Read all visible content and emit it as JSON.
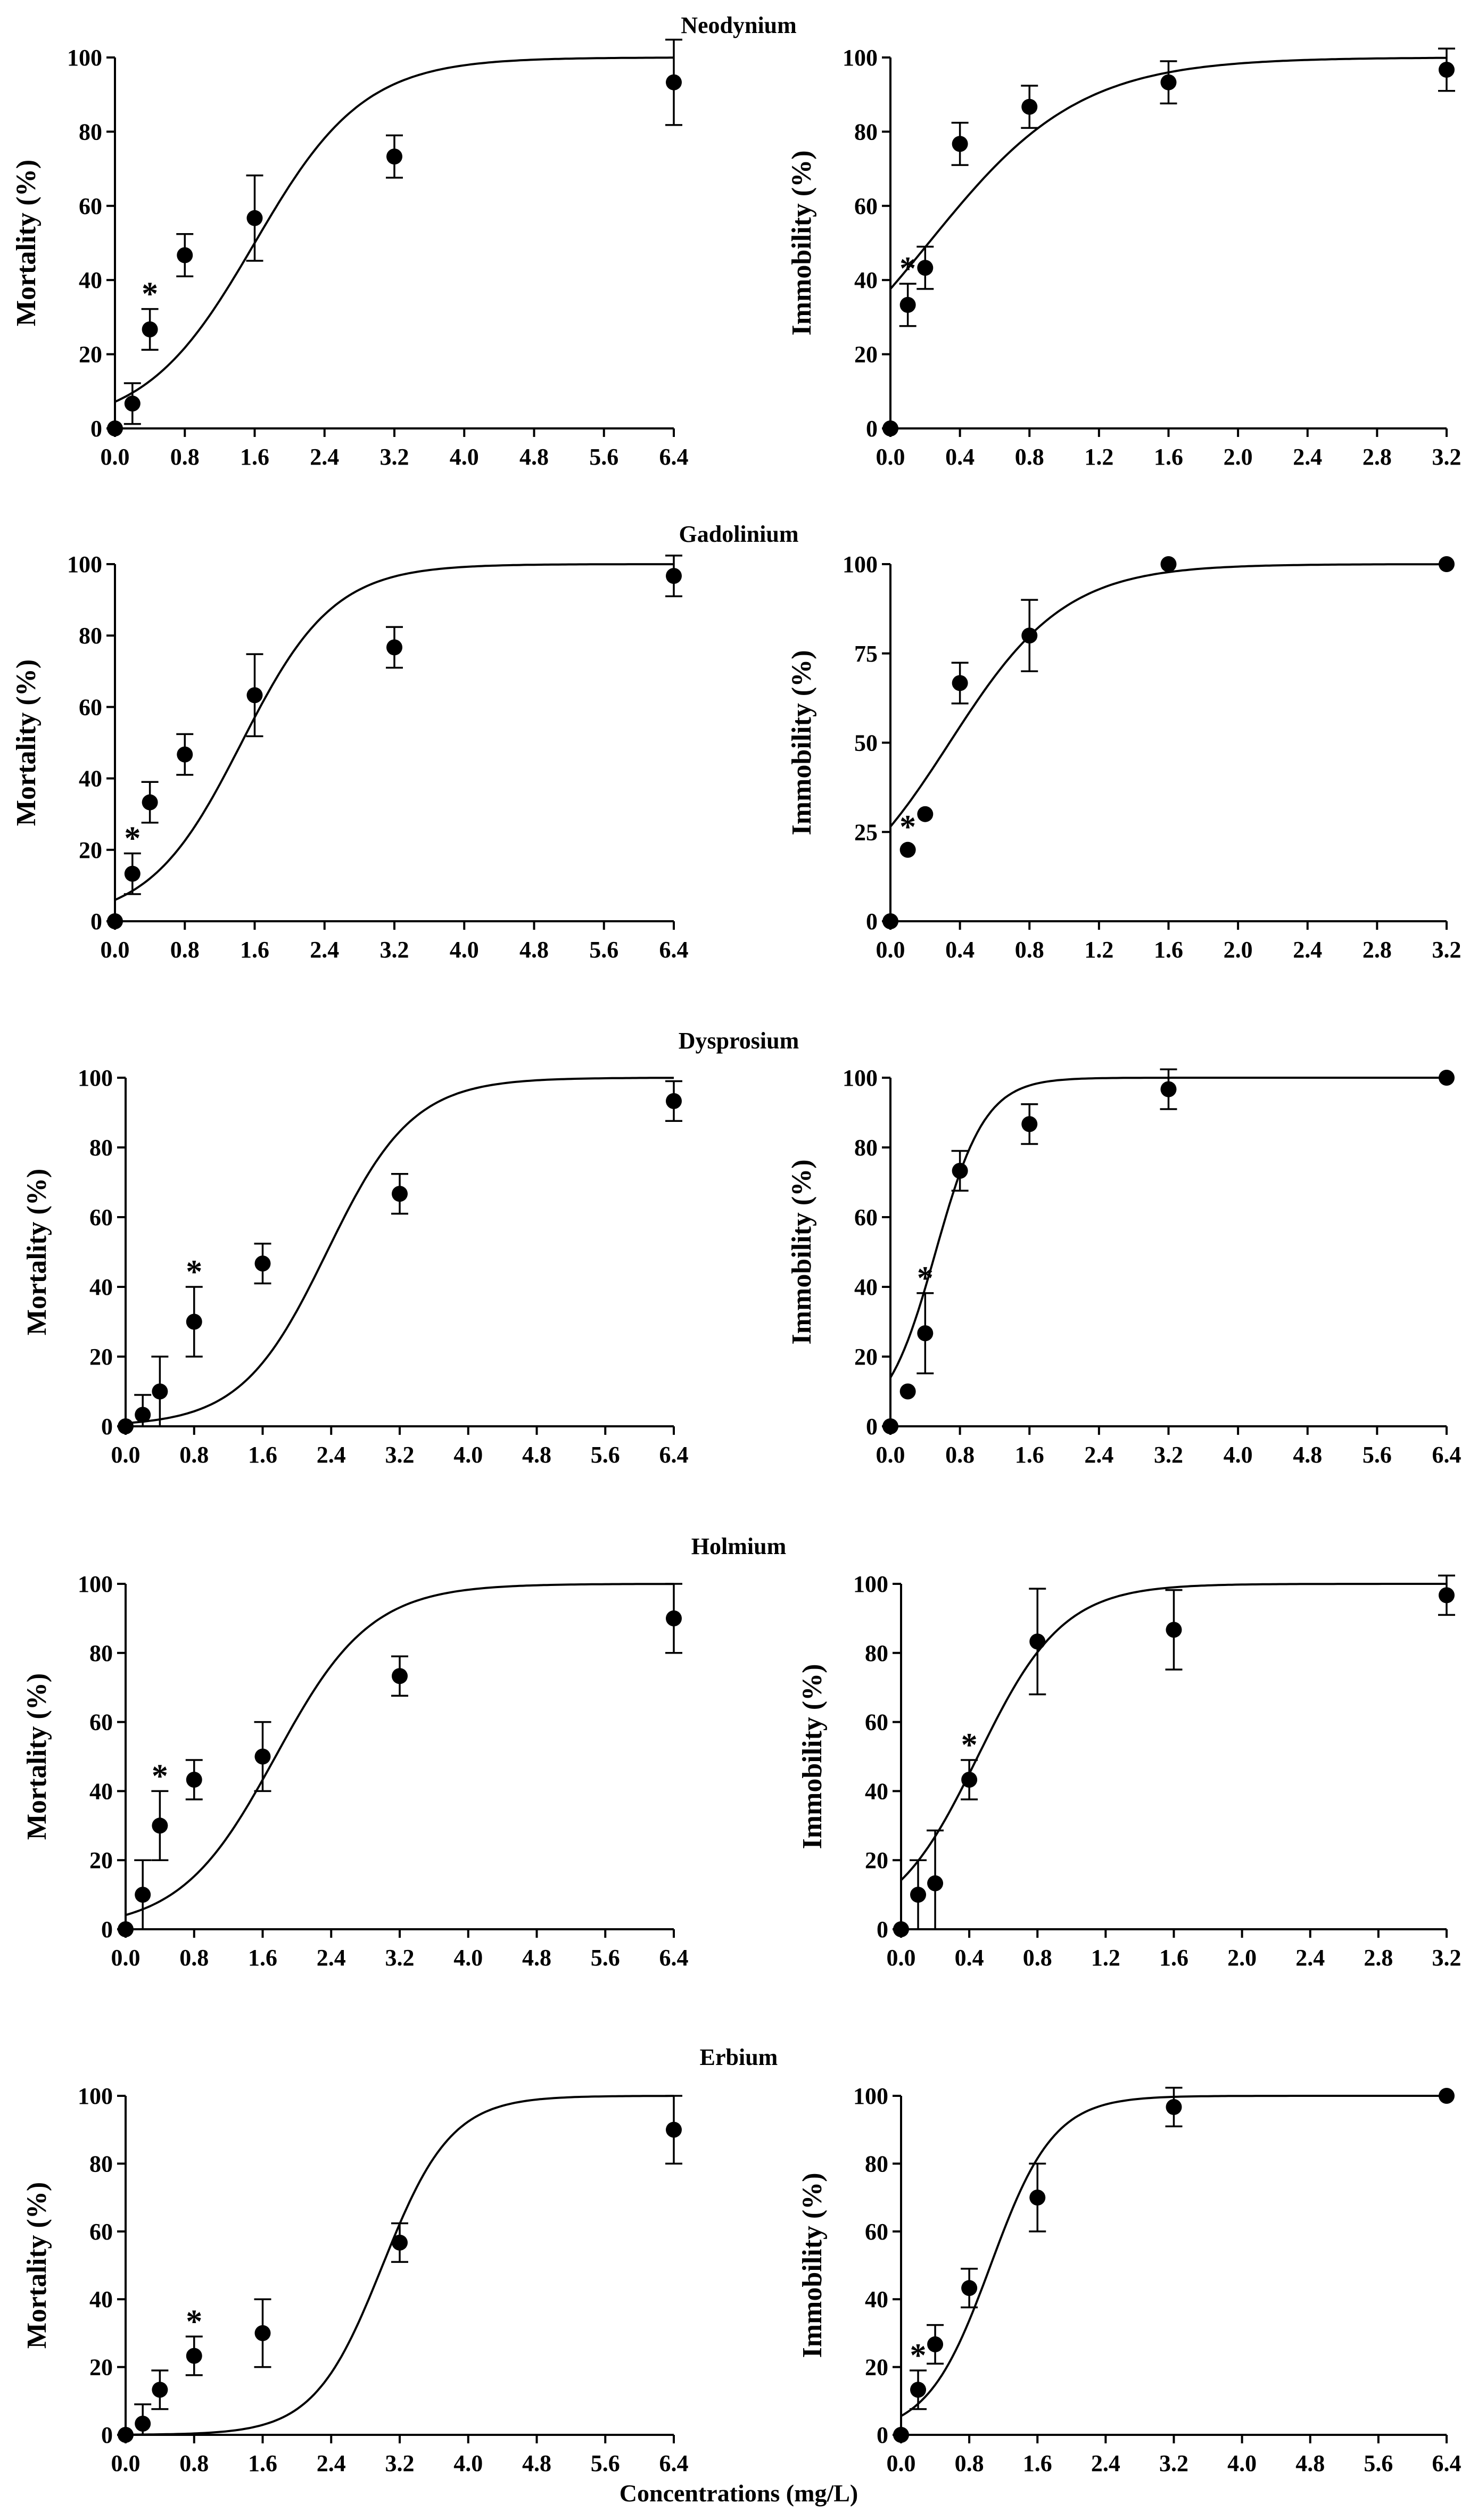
{
  "figure": {
    "xlabel": "Concentrations (mg/L)"
  },
  "chart_data": [
    {
      "id": "nd-mort",
      "type": "scatter",
      "title": "Neodynium",
      "ylabel": "Mortality (%)",
      "xlim": [
        0,
        6.4
      ],
      "xticks": [
        "0.0",
        "0.8",
        "1.6",
        "2.4",
        "3.2",
        "4.0",
        "4.8",
        "5.6",
        "6.4"
      ],
      "ylim": [
        0,
        100
      ],
      "yticks": [
        "0",
        "20",
        "40",
        "60",
        "80",
        "100"
      ],
      "points": [
        {
          "x": 0,
          "y": 0,
          "err": 0
        },
        {
          "x": 0.2,
          "y": 6.7,
          "err": 5.5
        },
        {
          "x": 0.4,
          "y": 26.7,
          "err": 5.5,
          "star": true
        },
        {
          "x": 0.8,
          "y": 46.7,
          "err": 5.7
        },
        {
          "x": 1.6,
          "y": 56.7,
          "err": 11.5
        },
        {
          "x": 3.2,
          "y": 73.3,
          "err": 5.7
        },
        {
          "x": 6.4,
          "y": 93.3,
          "err": 11.5
        }
      ],
      "fit": {
        "ec50": 1.6,
        "hill": 1.6
      }
    },
    {
      "id": "nd-immo",
      "type": "scatter",
      "title": "",
      "ylabel": "Immobility (%)",
      "xlim": [
        0,
        3.2
      ],
      "xticks": [
        "0.0",
        "0.4",
        "0.8",
        "1.2",
        "1.6",
        "2.0",
        "2.4",
        "2.8",
        "3.2"
      ],
      "ylim": [
        0,
        100
      ],
      "yticks": [
        "0",
        "20",
        "40",
        "60",
        "80",
        "100"
      ],
      "points": [
        {
          "x": 0,
          "y": 0,
          "err": 0
        },
        {
          "x": 0.1,
          "y": 33.3,
          "err": 5.7,
          "star": true
        },
        {
          "x": 0.2,
          "y": 43.3,
          "err": 5.7
        },
        {
          "x": 0.4,
          "y": 76.7,
          "err": 5.7
        },
        {
          "x": 0.8,
          "y": 86.7,
          "err": 5.7
        },
        {
          "x": 1.6,
          "y": 93.3,
          "err": 5.7
        },
        {
          "x": 3.2,
          "y": 96.7,
          "err": 5.7
        }
      ],
      "fit": {
        "ec50": 0.22,
        "hill": 2.3
      }
    },
    {
      "id": "gd-mort",
      "type": "scatter",
      "title": "Gadolinium",
      "ylabel": "Mortality (%)",
      "xlim": [
        0,
        6.4
      ],
      "xticks": [
        "0.0",
        "0.8",
        "1.6",
        "2.4",
        "3.2",
        "4.0",
        "4.8",
        "5.6",
        "6.4"
      ],
      "ylim": [
        0,
        100
      ],
      "yticks": [
        "0",
        "20",
        "40",
        "60",
        "80",
        "100"
      ],
      "points": [
        {
          "x": 0,
          "y": 0,
          "err": 0
        },
        {
          "x": 0.2,
          "y": 13.3,
          "err": 5.7,
          "star": true
        },
        {
          "x": 0.4,
          "y": 33.3,
          "err": 5.7
        },
        {
          "x": 0.8,
          "y": 46.7,
          "err": 5.7
        },
        {
          "x": 1.6,
          "y": 63.3,
          "err": 11.5
        },
        {
          "x": 3.2,
          "y": 76.7,
          "err": 5.7
        },
        {
          "x": 6.4,
          "y": 96.7,
          "err": 5.7
        }
      ],
      "fit": {
        "ec50": 1.45,
        "hill": 1.9
      }
    },
    {
      "id": "gd-immo",
      "type": "scatter",
      "title": "",
      "ylabel": "Immobility (%)",
      "xlim": [
        0,
        3.2
      ],
      "xticks": [
        "0.0",
        "0.4",
        "0.8",
        "1.2",
        "1.6",
        "2.0",
        "2.4",
        "2.8",
        "3.2"
      ],
      "ylim": [
        0,
        100
      ],
      "yticks": [
        "0",
        "25",
        "50",
        "75",
        "100"
      ],
      "points": [
        {
          "x": 0,
          "y": 0,
          "err": 0
        },
        {
          "x": 0.1,
          "y": 20,
          "err": 0,
          "star": true
        },
        {
          "x": 0.2,
          "y": 30,
          "err": 0
        },
        {
          "x": 0.4,
          "y": 66.7,
          "err": 5.7
        },
        {
          "x": 0.8,
          "y": 80,
          "err": 10
        },
        {
          "x": 1.6,
          "y": 100,
          "err": 0
        },
        {
          "x": 3.2,
          "y": 100,
          "err": 0
        }
      ],
      "fit": {
        "ec50": 0.34,
        "hill": 3
      }
    },
    {
      "id": "dy-mort",
      "type": "scatter",
      "title": "Dysprosium",
      "ylabel": "Mortality (%)",
      "xlim": [
        0,
        6.4
      ],
      "xticks": [
        "0.0",
        "0.8",
        "1.6",
        "2.4",
        "3.2",
        "4.0",
        "4.8",
        "5.6",
        "6.4"
      ],
      "ylim": [
        0,
        100
      ],
      "yticks": [
        "0",
        "20",
        "40",
        "60",
        "80",
        "100"
      ],
      "points": [
        {
          "x": 0,
          "y": 0,
          "err": 0
        },
        {
          "x": 0.2,
          "y": 3.3,
          "err": 5.7
        },
        {
          "x": 0.4,
          "y": 10,
          "err": 10
        },
        {
          "x": 0.8,
          "y": 30,
          "err": 10,
          "star": true
        },
        {
          "x": 1.6,
          "y": 46.7,
          "err": 5.7
        },
        {
          "x": 3.2,
          "y": 66.7,
          "err": 5.7
        },
        {
          "x": 6.4,
          "y": 93.3,
          "err": 5.7
        }
      ],
      "fit": {
        "ec50": 2.35,
        "hill": 2
      }
    },
    {
      "id": "dy-immo",
      "type": "scatter",
      "title": "",
      "ylabel": "Immobility (%)",
      "xlim": [
        0,
        6.4
      ],
      "xticks": [
        "0.0",
        "0.8",
        "1.6",
        "2.4",
        "3.2",
        "4.0",
        "4.8",
        "5.6",
        "6.4"
      ],
      "ylim": [
        0,
        100
      ],
      "yticks": [
        "0",
        "20",
        "40",
        "60",
        "80",
        "100"
      ],
      "points": [
        {
          "x": 0,
          "y": 0,
          "err": 0
        },
        {
          "x": 0.2,
          "y": 10,
          "err": 0
        },
        {
          "x": 0.4,
          "y": 26.7,
          "err": 11.5,
          "star": true
        },
        {
          "x": 0.8,
          "y": 73.3,
          "err": 5.7
        },
        {
          "x": 1.6,
          "y": 86.7,
          "err": 5.7
        },
        {
          "x": 3.2,
          "y": 96.7,
          "err": 5.7
        },
        {
          "x": 6.4,
          "y": 100,
          "err": 0
        }
      ],
      "fit": {
        "ec50": 0.52,
        "hill": 3.5
      }
    },
    {
      "id": "ho-mort",
      "type": "scatter",
      "title": "Holmium",
      "ylabel": "Mortality (%)",
      "xlim": [
        0,
        6.4
      ],
      "xticks": [
        "0.0",
        "0.8",
        "1.6",
        "2.4",
        "3.2",
        "4.0",
        "4.8",
        "5.6",
        "6.4"
      ],
      "ylim": [
        0,
        100
      ],
      "yticks": [
        "0",
        "20",
        "40",
        "60",
        "80",
        "100"
      ],
      "points": [
        {
          "x": 0,
          "y": 0,
          "err": 0
        },
        {
          "x": 0.2,
          "y": 10,
          "err": 10
        },
        {
          "x": 0.4,
          "y": 30,
          "err": 10,
          "star": true
        },
        {
          "x": 0.8,
          "y": 43.3,
          "err": 5.7
        },
        {
          "x": 1.6,
          "y": 50,
          "err": 10
        },
        {
          "x": 3.2,
          "y": 73.3,
          "err": 5.7
        },
        {
          "x": 6.4,
          "y": 90,
          "err": 10
        }
      ],
      "fit": {
        "ec50": 1.75,
        "hill": 1.8
      }
    },
    {
      "id": "ho-immo",
      "type": "scatter",
      "title": "",
      "ylabel": "Immobility (%)",
      "xlim": [
        0,
        3.2
      ],
      "xticks": [
        "0.0",
        "0.4",
        "0.8",
        "1.2",
        "1.6",
        "2.0",
        "2.4",
        "2.8",
        "3.2"
      ],
      "ylim": [
        0,
        100
      ],
      "yticks": [
        "0",
        "20",
        "40",
        "60",
        "80",
        "100"
      ],
      "points": [
        {
          "x": 0,
          "y": 0,
          "err": 0
        },
        {
          "x": 0.1,
          "y": 10,
          "err": 10
        },
        {
          "x": 0.2,
          "y": 13.3,
          "err": 15.3
        },
        {
          "x": 0.4,
          "y": 43.3,
          "err": 5.7,
          "star": true
        },
        {
          "x": 0.8,
          "y": 83.3,
          "err": 15.3
        },
        {
          "x": 1.6,
          "y": 86.7,
          "err": 11.5
        },
        {
          "x": 3.2,
          "y": 96.7,
          "err": 5.7
        }
      ],
      "fit": {
        "ec50": 0.45,
        "hill": 4
      }
    },
    {
      "id": "er-mort",
      "type": "scatter",
      "title": "Erbium",
      "ylabel": "Mortality (%)",
      "xlim": [
        0,
        6.4
      ],
      "xticks": [
        "0.0",
        "0.8",
        "1.6",
        "2.4",
        "3.2",
        "4.0",
        "4.8",
        "5.6",
        "6.4"
      ],
      "ylim": [
        0,
        100
      ],
      "yticks": [
        "0",
        "20",
        "40",
        "60",
        "80",
        "100"
      ],
      "points": [
        {
          "x": 0,
          "y": 0,
          "err": 0
        },
        {
          "x": 0.2,
          "y": 3.3,
          "err": 5.7
        },
        {
          "x": 0.4,
          "y": 13.3,
          "err": 5.7
        },
        {
          "x": 0.8,
          "y": 23.3,
          "err": 5.7,
          "star": true
        },
        {
          "x": 1.6,
          "y": 30,
          "err": 10
        },
        {
          "x": 3.2,
          "y": 56.7,
          "err": 5.7
        },
        {
          "x": 6.4,
          "y": 90,
          "err": 10
        }
      ],
      "fit": {
        "ec50": 3.0,
        "hill": 2.5
      }
    },
    {
      "id": "er-immo",
      "type": "scatter",
      "title": "",
      "ylabel": "Immobility (%)",
      "xlim": [
        0,
        6.4
      ],
      "xticks": [
        "0.0",
        "0.8",
        "1.6",
        "2.4",
        "3.2",
        "4.0",
        "4.8",
        "5.6",
        "6.4"
      ],
      "ylim": [
        0,
        100
      ],
      "yticks": [
        "0",
        "20",
        "40",
        "60",
        "80",
        "100"
      ],
      "points": [
        {
          "x": 0,
          "y": 0,
          "err": 0
        },
        {
          "x": 0.2,
          "y": 13.3,
          "err": 5.7,
          "star": true
        },
        {
          "x": 0.4,
          "y": 26.7,
          "err": 5.7
        },
        {
          "x": 0.8,
          "y": 43.3,
          "err": 5.7
        },
        {
          "x": 1.6,
          "y": 70,
          "err": 10
        },
        {
          "x": 3.2,
          "y": 96.7,
          "err": 5.7
        },
        {
          "x": 6.4,
          "y": 100,
          "err": 0
        }
      ],
      "fit": {
        "ec50": 1.05,
        "hill": 2.7
      }
    }
  ]
}
